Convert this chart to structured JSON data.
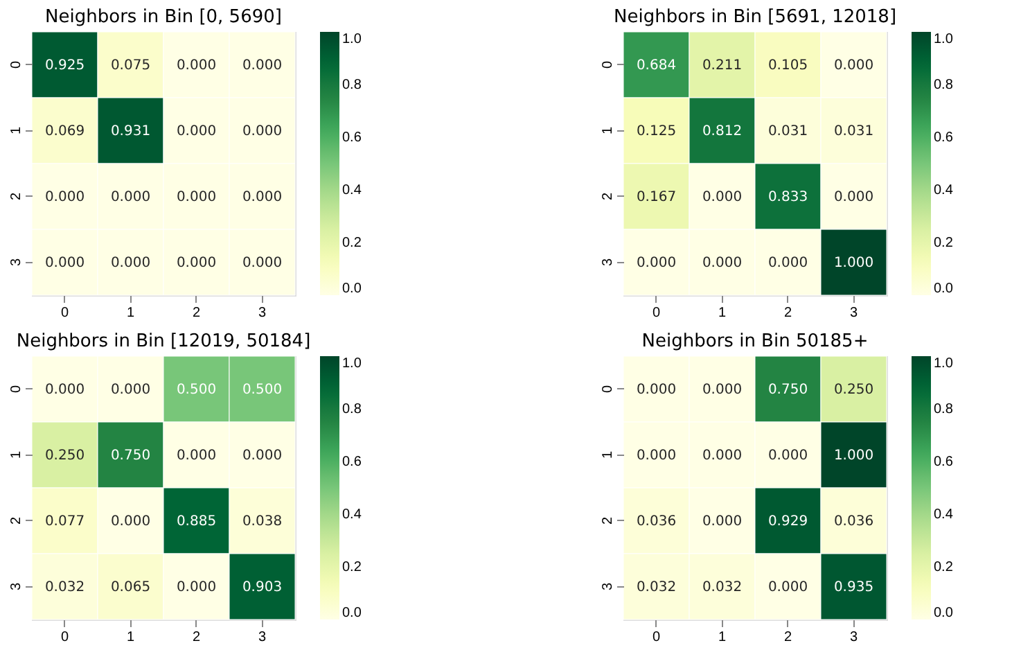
{
  "chart_data": [
    {
      "type": "heatmap",
      "title": "Neighbors in Bin [0, 5690]",
      "categories": [
        "0",
        "1",
        "2",
        "3"
      ],
      "y_categories": [
        "0",
        "1",
        "2",
        "3"
      ],
      "cells": [
        [
          0.925,
          0.075,
          0,
          0
        ],
        [
          0.069,
          0.931,
          0,
          0
        ],
        [
          0,
          0,
          0,
          0
        ],
        [
          0,
          0,
          0,
          0
        ]
      ],
      "cell_labels": [
        [
          "0.925",
          "0.075",
          "0.000",
          "0.000"
        ],
        [
          "0.069",
          "0.931",
          "0.000",
          "0.000"
        ],
        [
          "0.000",
          "0.000",
          "0.000",
          "0.000"
        ],
        [
          "0.000",
          "0.000",
          "0.000",
          "0.000"
        ]
      ],
      "clim": [
        0,
        1
      ],
      "cticks": [
        {
          "value": 0,
          "label": "0.0"
        },
        {
          "value": 0.2,
          "label": "0.2"
        },
        {
          "value": 0.4,
          "label": "0.4"
        },
        {
          "value": 0.6,
          "label": "0.6"
        },
        {
          "value": 0.8,
          "label": "0.8"
        },
        {
          "value": 1,
          "label": "1.0"
        }
      ]
    },
    {
      "type": "heatmap",
      "title": "Neighbors in Bin [5691, 12018]",
      "categories": [
        "0",
        "1",
        "2",
        "3"
      ],
      "y_categories": [
        "0",
        "1",
        "2",
        "3"
      ],
      "cells": [
        [
          0.684,
          0.211,
          0.105,
          0
        ],
        [
          0.125,
          0.812,
          0.031,
          0.031
        ],
        [
          0.167,
          0,
          0.833,
          0
        ],
        [
          0,
          0,
          0,
          1
        ]
      ],
      "cell_labels": [
        [
          "0.684",
          "0.211",
          "0.105",
          "0.000"
        ],
        [
          "0.125",
          "0.812",
          "0.031",
          "0.031"
        ],
        [
          "0.167",
          "0.000",
          "0.833",
          "0.000"
        ],
        [
          "0.000",
          "0.000",
          "0.000",
          "1.000"
        ]
      ],
      "clim": [
        0,
        1
      ],
      "cticks": [
        {
          "value": 0,
          "label": "0.0"
        },
        {
          "value": 0.2,
          "label": "0.2"
        },
        {
          "value": 0.4,
          "label": "0.4"
        },
        {
          "value": 0.6,
          "label": "0.6"
        },
        {
          "value": 0.8,
          "label": "0.8"
        },
        {
          "value": 1,
          "label": "1.0"
        }
      ]
    },
    {
      "type": "heatmap",
      "title": "Neighbors in Bin [12019, 50184]",
      "categories": [
        "0",
        "1",
        "2",
        "3"
      ],
      "y_categories": [
        "0",
        "1",
        "2",
        "3"
      ],
      "cells": [
        [
          0,
          0,
          0.5,
          0.5
        ],
        [
          0.25,
          0.75,
          0,
          0
        ],
        [
          0.077,
          0,
          0.885,
          0.038
        ],
        [
          0.032,
          0.065,
          0,
          0.903
        ]
      ],
      "cell_labels": [
        [
          "0.000",
          "0.000",
          "0.500",
          "0.500"
        ],
        [
          "0.250",
          "0.750",
          "0.000",
          "0.000"
        ],
        [
          "0.077",
          "0.000",
          "0.885",
          "0.038"
        ],
        [
          "0.032",
          "0.065",
          "0.000",
          "0.903"
        ]
      ],
      "clim": [
        0,
        1
      ],
      "cticks": [
        {
          "value": 0,
          "label": "0.0"
        },
        {
          "value": 0.2,
          "label": "0.2"
        },
        {
          "value": 0.4,
          "label": "0.4"
        },
        {
          "value": 0.6,
          "label": "0.6"
        },
        {
          "value": 0.8,
          "label": "0.8"
        },
        {
          "value": 1,
          "label": "1.0"
        }
      ]
    },
    {
      "type": "heatmap",
      "title": "Neighbors in Bin 50185+",
      "categories": [
        "0",
        "1",
        "2",
        "3"
      ],
      "y_categories": [
        "0",
        "1",
        "2",
        "3"
      ],
      "cells": [
        [
          0,
          0,
          0.75,
          0.25
        ],
        [
          0,
          0,
          0,
          1
        ],
        [
          0.036,
          0,
          0.929,
          0.036
        ],
        [
          0.032,
          0.032,
          0,
          0.935
        ]
      ],
      "cell_labels": [
        [
          "0.000",
          "0.000",
          "0.750",
          "0.250"
        ],
        [
          "0.000",
          "0.000",
          "0.000",
          "1.000"
        ],
        [
          "0.036",
          "0.000",
          "0.929",
          "0.036"
        ],
        [
          "0.032",
          "0.032",
          "0.000",
          "0.935"
        ]
      ],
      "clim": [
        0,
        1
      ],
      "cticks": [
        {
          "value": 0,
          "label": "0.0"
        },
        {
          "value": 0.2,
          "label": "0.2"
        },
        {
          "value": 0.4,
          "label": "0.4"
        },
        {
          "value": 0.6,
          "label": "0.6"
        },
        {
          "value": 0.8,
          "label": "0.8"
        },
        {
          "value": 1,
          "label": "1.0"
        }
      ]
    }
  ]
}
